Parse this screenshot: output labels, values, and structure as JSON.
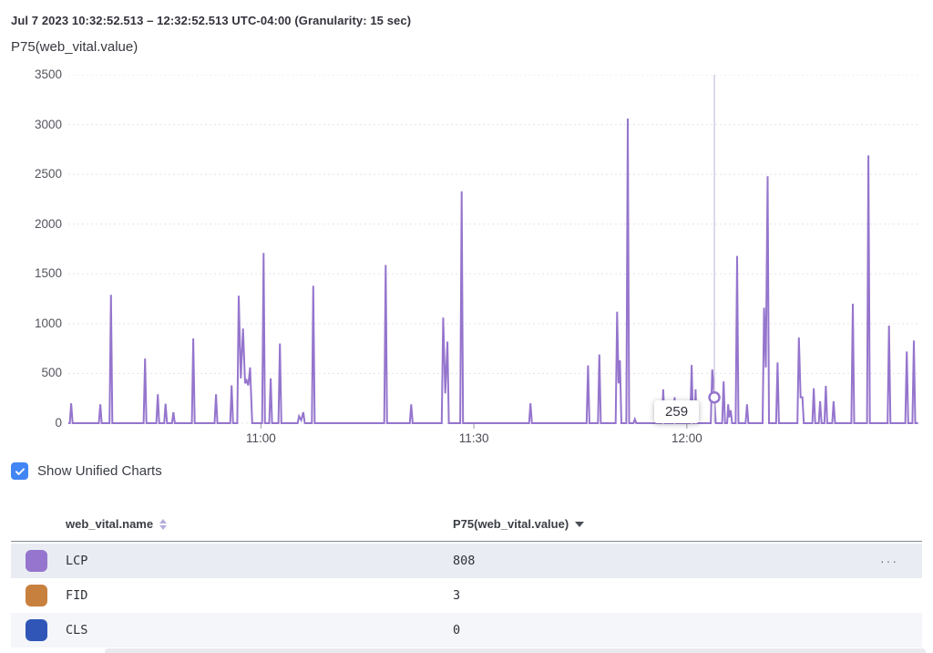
{
  "header": {
    "time_range": "Jul 7 2023 10:32:52.513 – 12:32:52.513 UTC-04:00 (Granularity: 15 sec)"
  },
  "chart_data": {
    "type": "line",
    "title": "P75(web_vital.value)",
    "ylabel": "",
    "xlabel": "",
    "grid": "horizontal-dashed",
    "y_axis": {
      "range": [
        0,
        3500
      ],
      "ticks": [
        0,
        500,
        1000,
        1500,
        2000,
        2500,
        3000,
        3500
      ]
    },
    "x_axis": {
      "start": "10:32:52.513",
      "end": "12:32:52.513",
      "range_minutes": [
        0,
        120
      ],
      "ticks": [
        {
          "label": "11:00",
          "t": 27.125
        },
        {
          "label": "11:30",
          "t": 57.125
        },
        {
          "label": "12:00",
          "t": 87.125
        }
      ]
    },
    "hover": {
      "t": 91.0,
      "value": 259,
      "label": "259"
    },
    "series": [
      {
        "name": "P75(web_vital.value)",
        "color": "#9575cd",
        "points": [
          [
            0,
            0
          ],
          [
            0.2,
            0
          ],
          [
            0.4,
            200
          ],
          [
            0.6,
            0
          ],
          [
            4.3,
            0
          ],
          [
            4.5,
            190
          ],
          [
            4.7,
            0
          ],
          [
            5.8,
            0
          ],
          [
            6.0,
            1290
          ],
          [
            6.2,
            0
          ],
          [
            10.6,
            0
          ],
          [
            10.8,
            650
          ],
          [
            11.0,
            0
          ],
          [
            12.4,
            0
          ],
          [
            12.6,
            290
          ],
          [
            12.8,
            0
          ],
          [
            13.5,
            0
          ],
          [
            13.7,
            195
          ],
          [
            13.9,
            0
          ],
          [
            14.6,
            0
          ],
          [
            14.8,
            110
          ],
          [
            15.0,
            0
          ],
          [
            17.4,
            0
          ],
          [
            17.6,
            850
          ],
          [
            17.8,
            0
          ],
          [
            20.6,
            0
          ],
          [
            20.8,
            290
          ],
          [
            21.0,
            0
          ],
          [
            22.8,
            0
          ],
          [
            23.0,
            380
          ],
          [
            23.2,
            0
          ],
          [
            23.8,
            0
          ],
          [
            24.0,
            1280
          ],
          [
            24.3,
            450
          ],
          [
            24.6,
            950
          ],
          [
            24.9,
            400
          ],
          [
            25.1,
            430
          ],
          [
            25.35,
            380
          ],
          [
            25.6,
            560
          ],
          [
            25.9,
            0
          ],
          [
            27.3,
            0
          ],
          [
            27.5,
            1710
          ],
          [
            27.7,
            0
          ],
          [
            28.3,
            0
          ],
          [
            28.5,
            450
          ],
          [
            28.7,
            0
          ],
          [
            29.6,
            0
          ],
          [
            29.8,
            800
          ],
          [
            30.0,
            0
          ],
          [
            32.3,
            0
          ],
          [
            32.5,
            70
          ],
          [
            32.8,
            30
          ],
          [
            33.1,
            110
          ],
          [
            33.3,
            0
          ],
          [
            34.3,
            0
          ],
          [
            34.5,
            1380
          ],
          [
            34.7,
            0
          ],
          [
            44.5,
            0
          ],
          [
            44.7,
            1590
          ],
          [
            44.9,
            0
          ],
          [
            48.1,
            0
          ],
          [
            48.3,
            190
          ],
          [
            48.5,
            0
          ],
          [
            52.6,
            0
          ],
          [
            52.8,
            1060
          ],
          [
            53.1,
            300
          ],
          [
            53.4,
            820
          ],
          [
            53.6,
            0
          ],
          [
            55.2,
            0
          ],
          [
            55.4,
            2330
          ],
          [
            55.6,
            0
          ],
          [
            64.9,
            0
          ],
          [
            65.1,
            200
          ],
          [
            65.3,
            0
          ],
          [
            73.0,
            0
          ],
          [
            73.2,
            580
          ],
          [
            73.4,
            0
          ],
          [
            74.6,
            0
          ],
          [
            74.8,
            690
          ],
          [
            75.0,
            0
          ],
          [
            77.1,
            0
          ],
          [
            77.3,
            1120
          ],
          [
            77.5,
            400
          ],
          [
            77.7,
            630
          ],
          [
            77.9,
            0
          ],
          [
            78.6,
            0
          ],
          [
            78.8,
            3060
          ],
          [
            79.0,
            0
          ],
          [
            79.6,
            0
          ],
          [
            79.8,
            40
          ],
          [
            80.0,
            0
          ],
          [
            83.6,
            0
          ],
          [
            83.8,
            340
          ],
          [
            84.0,
            0
          ],
          [
            85.2,
            0
          ],
          [
            85.4,
            260
          ],
          [
            85.6,
            0
          ],
          [
            87.6,
            0
          ],
          [
            87.8,
            585
          ],
          [
            88.0,
            0
          ],
          [
            88.2,
            0
          ],
          [
            88.35,
            340
          ],
          [
            88.5,
            0
          ],
          [
            90.5,
            0
          ],
          [
            90.7,
            540
          ],
          [
            91.0,
            259
          ],
          [
            91.2,
            0
          ],
          [
            92.1,
            0
          ],
          [
            92.3,
            420
          ],
          [
            92.5,
            0
          ],
          [
            92.8,
            0
          ],
          [
            92.95,
            190
          ],
          [
            93.1,
            60
          ],
          [
            93.3,
            130
          ],
          [
            93.5,
            0
          ],
          [
            94.0,
            0
          ],
          [
            94.2,
            1680
          ],
          [
            94.4,
            0
          ],
          [
            95.4,
            0
          ],
          [
            95.6,
            190
          ],
          [
            95.8,
            0
          ],
          [
            97.8,
            0
          ],
          [
            98.0,
            1160
          ],
          [
            98.25,
            560
          ],
          [
            98.5,
            2480
          ],
          [
            98.7,
            0
          ],
          [
            99.7,
            0
          ],
          [
            99.9,
            610
          ],
          [
            100.1,
            0
          ],
          [
            102.7,
            0
          ],
          [
            102.9,
            860
          ],
          [
            103.15,
            260
          ],
          [
            103.4,
            260
          ],
          [
            103.6,
            0
          ],
          [
            104.8,
            0
          ],
          [
            105.0,
            350
          ],
          [
            105.2,
            0
          ],
          [
            105.7,
            0
          ],
          [
            105.9,
            220
          ],
          [
            106.1,
            0
          ],
          [
            106.5,
            0
          ],
          [
            106.7,
            375
          ],
          [
            106.9,
            0
          ],
          [
            107.6,
            0
          ],
          [
            107.8,
            220
          ],
          [
            108.0,
            0
          ],
          [
            110.3,
            0
          ],
          [
            110.5,
            1200
          ],
          [
            110.7,
            0
          ],
          [
            112.5,
            0
          ],
          [
            112.7,
            2690
          ],
          [
            112.9,
            0
          ],
          [
            115.4,
            0
          ],
          [
            115.6,
            980
          ],
          [
            115.8,
            0
          ],
          [
            117.9,
            0
          ],
          [
            118.1,
            720
          ],
          [
            118.3,
            0
          ],
          [
            118.9,
            0
          ],
          [
            119.1,
            830
          ],
          [
            119.3,
            0
          ],
          [
            119.7,
            0
          ]
        ]
      }
    ],
    "colors": {
      "line": "#9575cd",
      "gridline": "#e3e3ee",
      "crosshair": "#c5c0de"
    }
  },
  "controls": {
    "unified_charts": {
      "label": "Show Unified Charts",
      "checked": true,
      "color": "#4285f4"
    }
  },
  "table": {
    "columns": [
      {
        "label": "web_vital.name",
        "sort": "both"
      },
      {
        "label": "P75(web_vital.value)",
        "sort": "desc"
      }
    ],
    "rows": [
      {
        "name": "LCP",
        "value": "808",
        "color": "#9575cd",
        "selected": true,
        "menu": true
      },
      {
        "name": "FID",
        "value": "3",
        "color": "#c8803f",
        "selected": false,
        "menu": false
      },
      {
        "name": "CLS",
        "value": "0",
        "color": "#3057b8",
        "selected": false,
        "menu": false
      }
    ],
    "row_menu_icon": "···"
  }
}
